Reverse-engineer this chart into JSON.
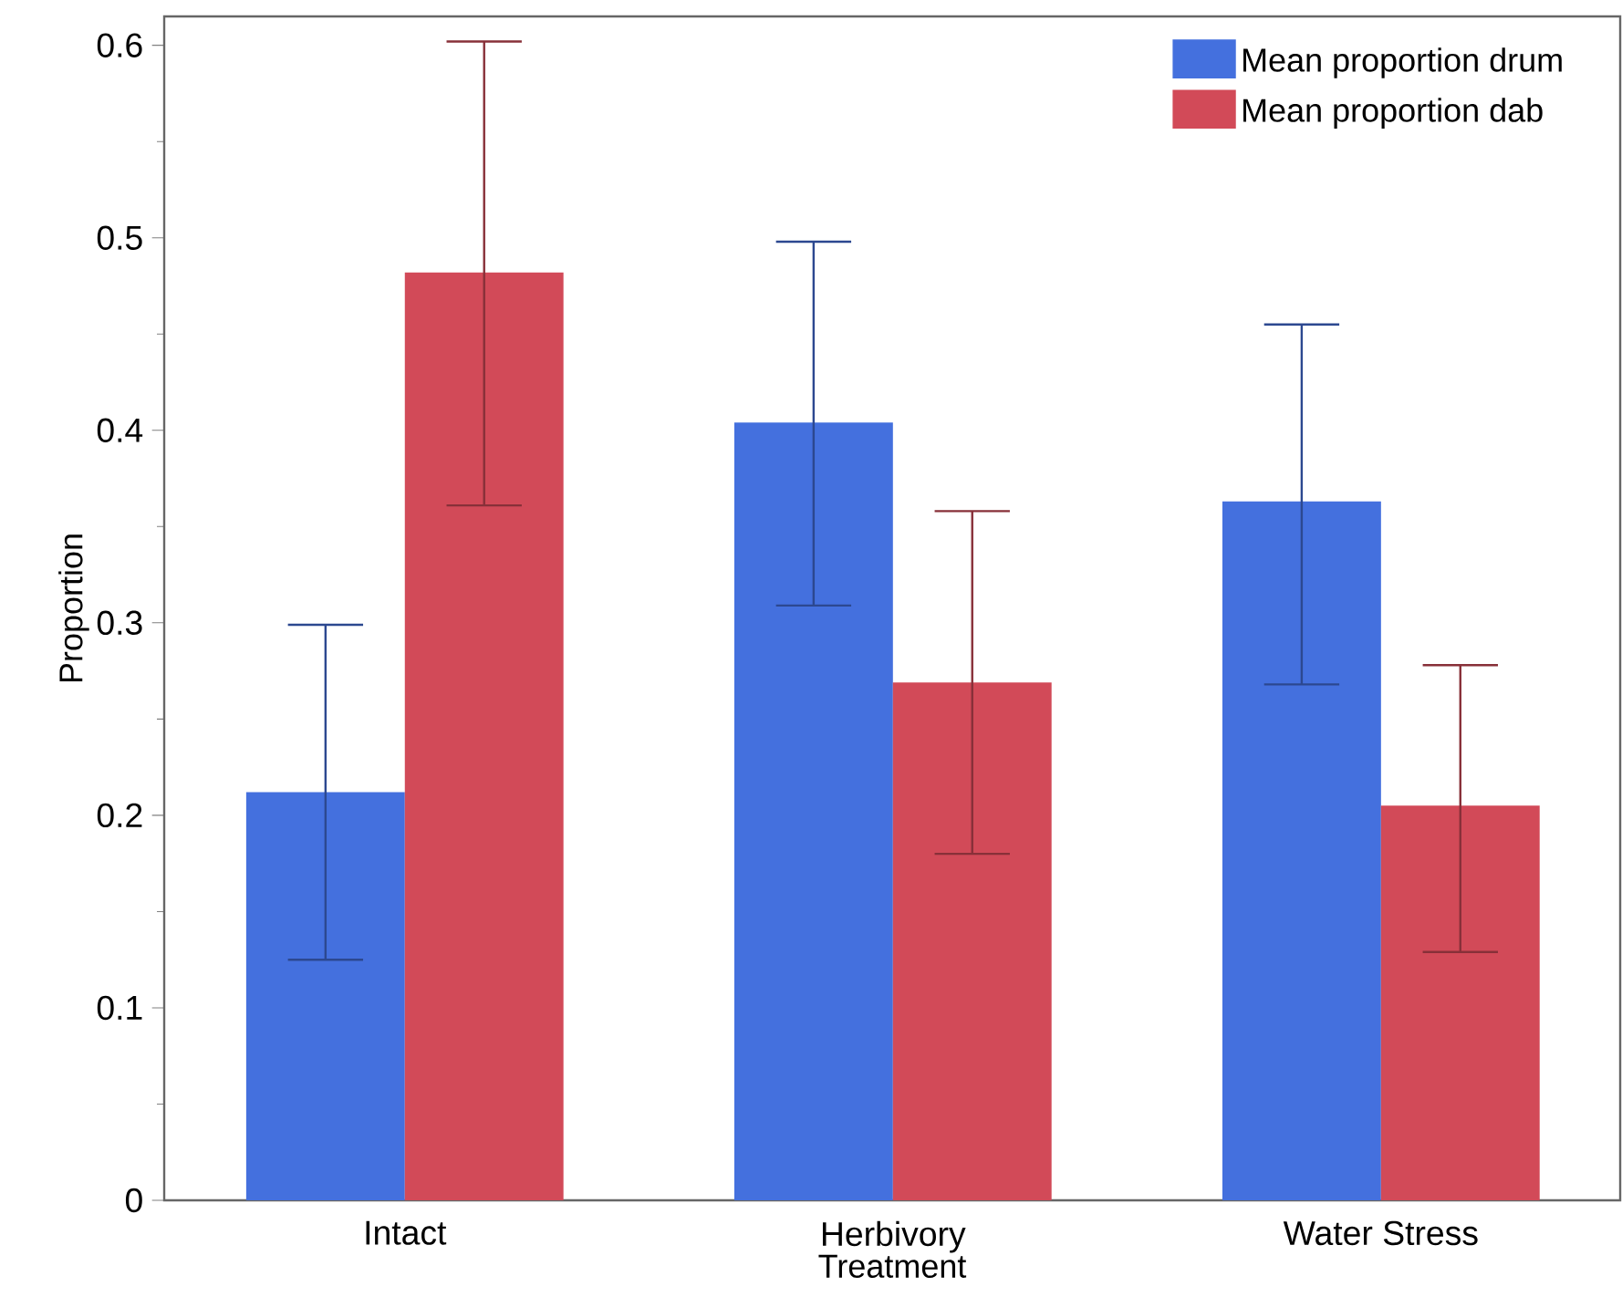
{
  "chart_data": {
    "type": "bar",
    "xlabel": "Treatment",
    "ylabel": "Proportion",
    "categories": [
      "Intact",
      "Herbivory",
      "Water Stress"
    ],
    "series": [
      {
        "name": "Mean proportion drum",
        "color": "#4470de",
        "values": [
          0.212,
          0.404,
          0.363
        ],
        "errors": [
          [
            0.125,
            0.299
          ],
          [
            0.309,
            0.498
          ],
          [
            0.268,
            0.455
          ]
        ]
      },
      {
        "name": "Mean proportion dab",
        "color": "#d24a58",
        "values": [
          0.482,
          0.269,
          0.205
        ],
        "errors": [
          [
            0.361,
            0.602
          ],
          [
            0.18,
            0.358
          ],
          [
            0.129,
            0.278
          ]
        ]
      }
    ],
    "ylim": [
      0,
      0.615
    ],
    "yticks": [
      0,
      0.1,
      0.2,
      0.3,
      0.4,
      0.5,
      0.6
    ],
    "grid": false,
    "legend": "top right"
  }
}
